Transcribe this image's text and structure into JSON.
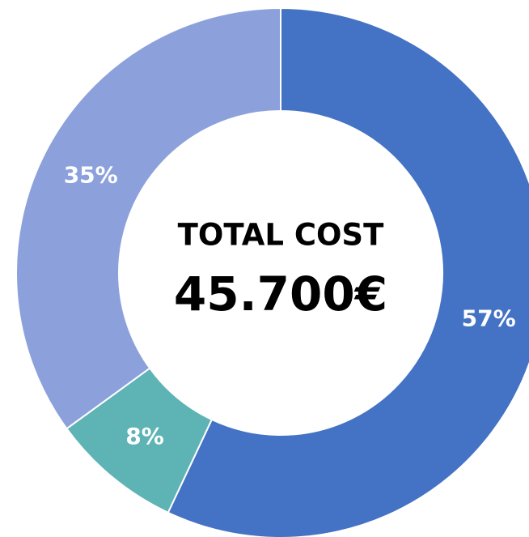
{
  "chart_data": {
    "type": "pie",
    "title": "TOTAL COST",
    "subtitle": "45.700€",
    "categories": [
      null,
      null,
      null
    ],
    "values": [
      57,
      8,
      35
    ],
    "value_labels": [
      "57%",
      "8%",
      "35%"
    ],
    "colors": [
      "#4472c4",
      "#5eb3b4",
      "#8ca1db"
    ],
    "donut": true
  }
}
